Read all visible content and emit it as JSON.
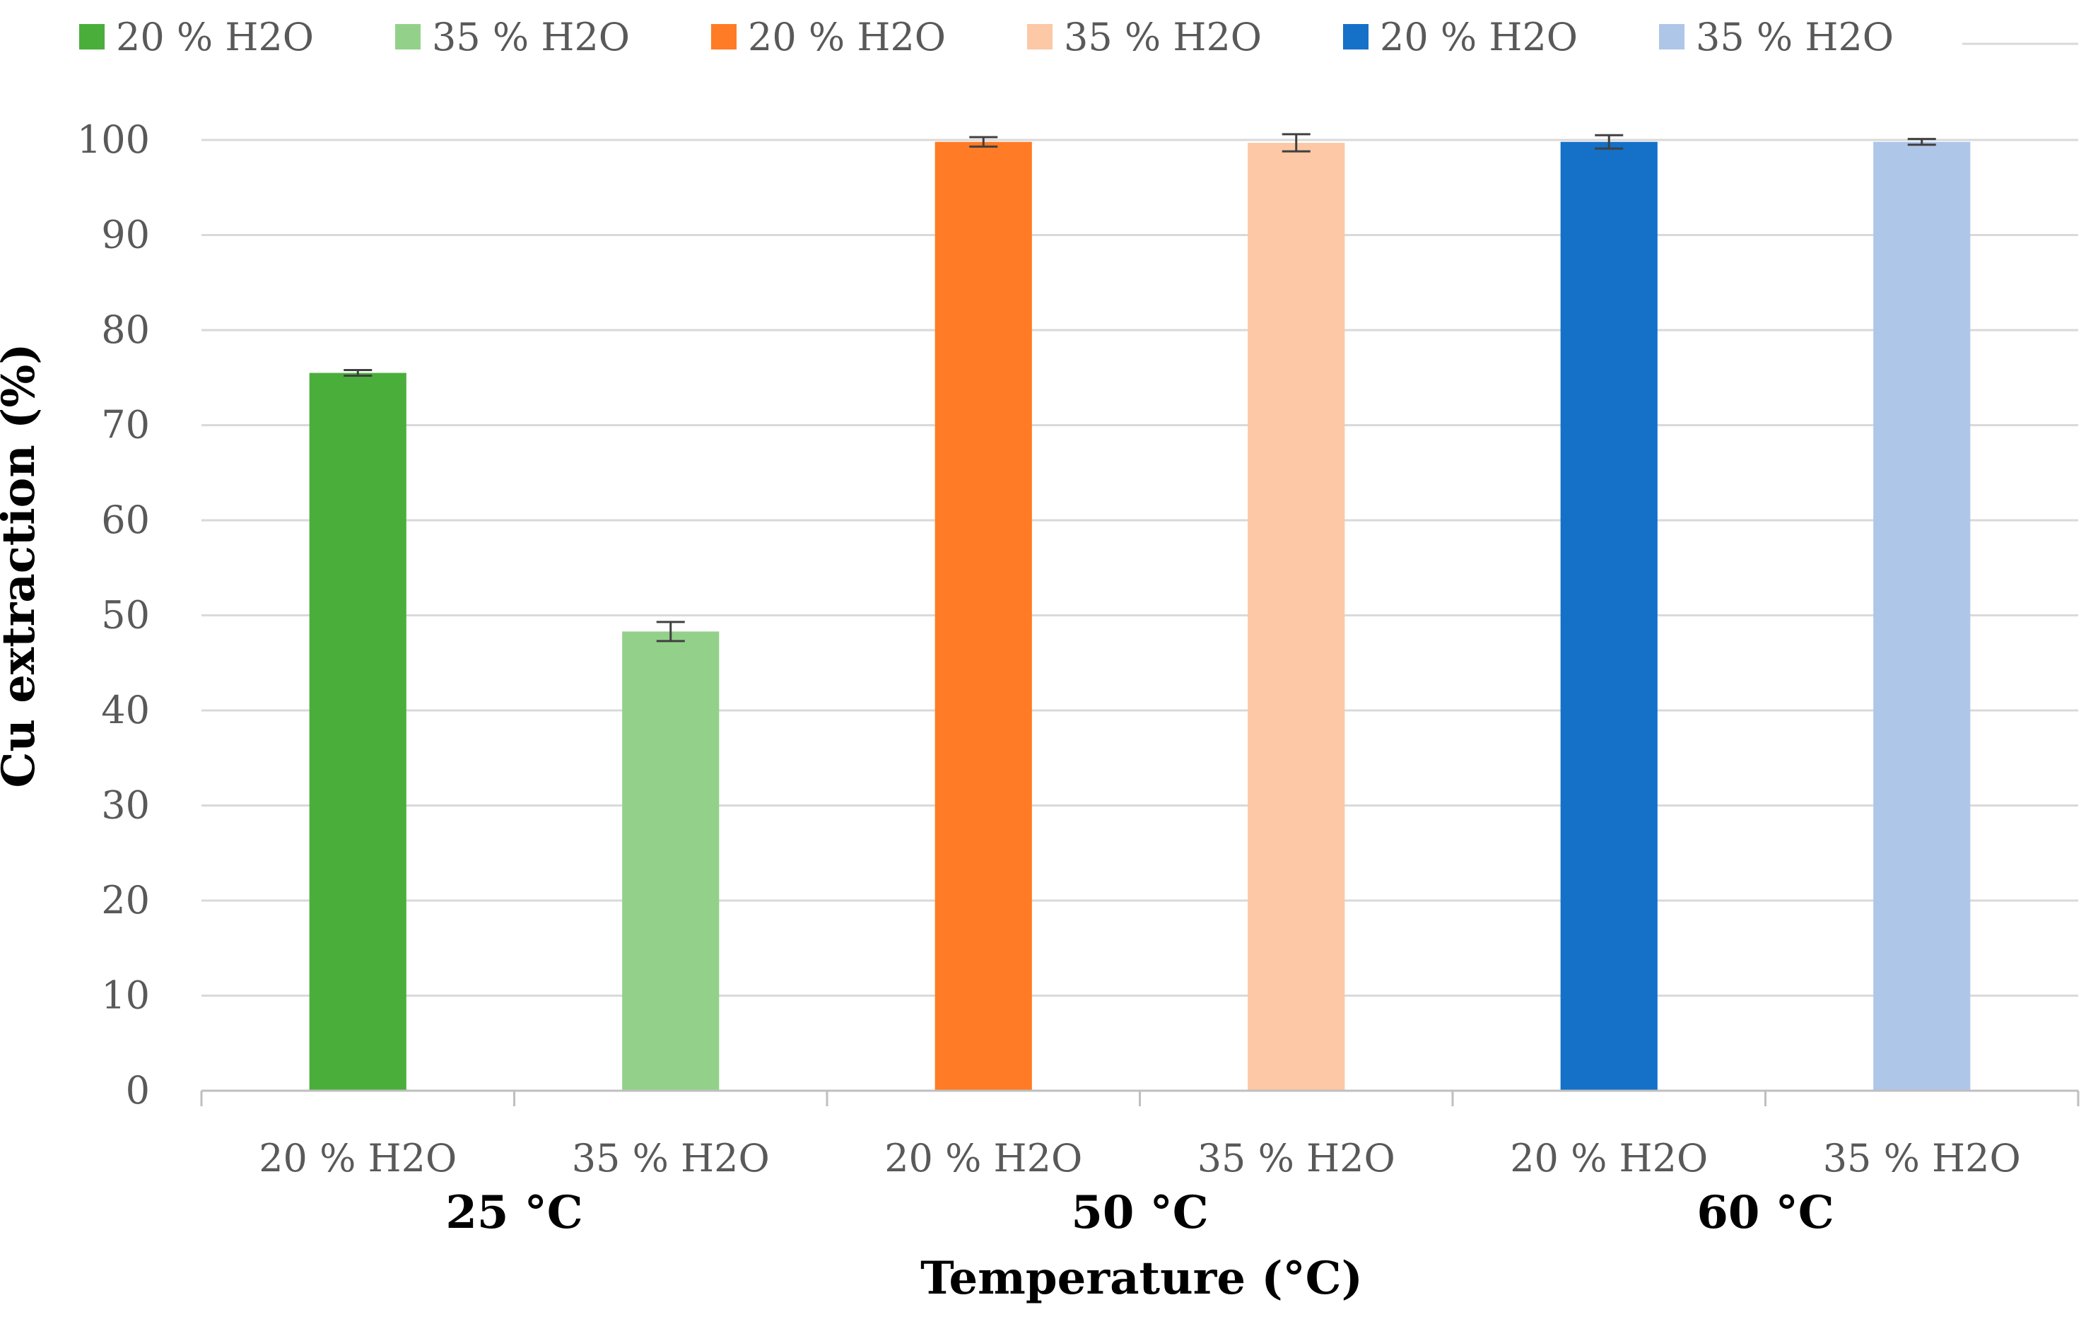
{
  "chart_data": {
    "type": "bar",
    "ylabel": "Cu extraction (%)",
    "xlabel": "Temperature (°C)",
    "ylim": [
      0,
      100
    ],
    "yticks": [
      0,
      10,
      20,
      30,
      40,
      50,
      60,
      70,
      80,
      90,
      100
    ],
    "grid": true,
    "legend_position": "top",
    "groups": [
      {
        "label": "25 °C",
        "bars": [
          {
            "category": "20 % H2O",
            "value": 75.5,
            "error": 0.3,
            "color": "#4aae3b"
          },
          {
            "category": "35 % H2O",
            "value": 48.3,
            "error": 1.0,
            "color": "#93d18a"
          }
        ]
      },
      {
        "label": "50 °C",
        "bars": [
          {
            "category": "20 % H2O",
            "value": 99.8,
            "error": 0.5,
            "color": "#ff7b25"
          },
          {
            "category": "35 % H2O",
            "value": 99.7,
            "error": 0.9,
            "color": "#fcc8a6"
          }
        ]
      },
      {
        "label": "60 °C",
        "bars": [
          {
            "category": "20 % H2O",
            "value": 99.8,
            "error": 0.7,
            "color": "#1570c8"
          },
          {
            "category": "35 % H2O",
            "value": 99.8,
            "error": 0.3,
            "color": "#aec6e8"
          }
        ]
      }
    ],
    "legend": [
      {
        "label": "20 % H2O",
        "color": "#4aae3b"
      },
      {
        "label": "35 % H2O",
        "color": "#93d18a"
      },
      {
        "label": "20 % H2O",
        "color": "#ff7b25"
      },
      {
        "label": "35 % H2O",
        "color": "#fcc8a6"
      },
      {
        "label": "20 % H2O",
        "color": "#1570c8"
      },
      {
        "label": "35 % H2O",
        "color": "#aec6e8"
      }
    ]
  }
}
